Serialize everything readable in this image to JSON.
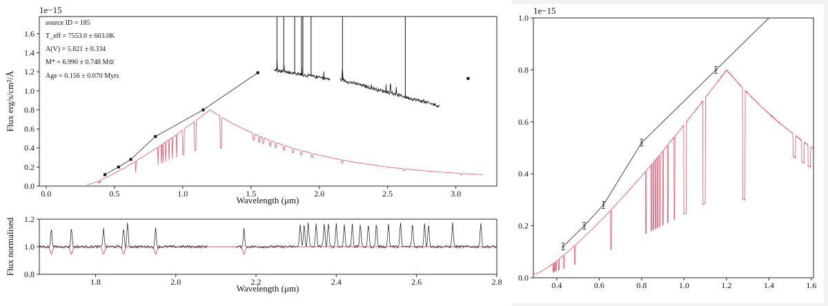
{
  "chart_data": [
    {
      "type": "line",
      "offset_label": "1e−15",
      "xlabel": "Wavelength (μm)",
      "ylabel": "Flux erg/s/cm²/Å",
      "xlim": [
        -0.05,
        3.3
      ],
      "ylim": [
        0,
        1.78
      ],
      "xticks": [
        "0.0",
        "0.5",
        "1.0",
        "1.5",
        "2.0",
        "2.5",
        "3.0"
      ],
      "yticks": [
        "0.0",
        "0.2",
        "0.4",
        "0.6",
        "0.8",
        "1.0",
        "1.2",
        "1.4",
        "1.6"
      ],
      "annotations": {
        "source": "source ID = 185",
        "teff": "T_eff = 7553.0 ± 603.0K",
        "av": "A(V) = 5.821 ± 0.334",
        "mass": "M* = 6.990 ± 0.748 M⊙",
        "age": "Age = 0.156 ± 0.070 Myrs"
      },
      "photometry": [
        {
          "x": 0.43,
          "y": 0.12
        },
        {
          "x": 0.53,
          "y": 0.2
        },
        {
          "x": 0.62,
          "y": 0.28
        },
        {
          "x": 0.8,
          "y": 0.52
        },
        {
          "x": 1.15,
          "y": 0.8
        },
        {
          "x": 1.55,
          "y": 1.19
        },
        {
          "x": 3.09,
          "y": 1.13
        }
      ],
      "model_color": "#e8506a",
      "model_peak": {
        "x": 1.2,
        "y": 0.8
      },
      "model_end": {
        "x": 3.2,
        "y": 0.12
      },
      "spectrum_segments": [
        {
          "x0": 1.67,
          "x1": 2.08,
          "y0": 1.22,
          "y1": 1.12
        },
        {
          "x0": 2.15,
          "x1": 2.88,
          "y0": 1.12,
          "y1": 0.84
        }
      ],
      "emission_lines": [
        1.69,
        1.74,
        1.82,
        1.87,
        1.88,
        1.94,
        2.17,
        2.63
      ]
    },
    {
      "type": "line",
      "xlabel": "Wavelength (μm)",
      "ylabel": "Flux normalised",
      "xlim": [
        1.66,
        2.8
      ],
      "ylim": [
        0.8,
        1.2
      ],
      "xticks": [
        "1.8",
        "2.0",
        "2.2",
        "2.4",
        "2.6",
        "2.8"
      ],
      "yticks": [
        "0.8",
        "1.0",
        "1.2"
      ],
      "model_color": "#e8506a",
      "emission_lines": [
        1.69,
        1.74,
        1.82,
        1.87,
        1.88,
        1.95,
        2.17,
        2.31,
        2.32,
        2.33,
        2.35,
        2.37,
        2.38,
        2.4,
        2.42,
        2.44,
        2.46,
        2.48,
        2.5,
        2.53,
        2.56,
        2.59,
        2.62,
        2.63,
        2.69,
        2.76
      ],
      "absorption_lines": [
        1.69,
        1.74,
        1.82,
        1.87,
        1.95,
        2.17
      ]
    },
    {
      "type": "line",
      "offset_label": "1e−15",
      "xlim": [
        0.29,
        1.61
      ],
      "ylim": [
        0,
        1.0
      ],
      "xticks": [
        "0.4",
        "0.6",
        "0.8",
        "1.0",
        "1.2",
        "1.4",
        "1.6"
      ],
      "yticks": [
        "0.0",
        "0.2",
        "0.4",
        "0.6",
        "0.8",
        "1.0"
      ],
      "photometry": [
        {
          "x": 0.43,
          "y": 0.12
        },
        {
          "x": 0.53,
          "y": 0.2
        },
        {
          "x": 0.62,
          "y": 0.28
        },
        {
          "x": 0.8,
          "y": 0.52
        },
        {
          "x": 1.15,
          "y": 0.8
        }
      ],
      "model_color": "#e8506a"
    }
  ]
}
